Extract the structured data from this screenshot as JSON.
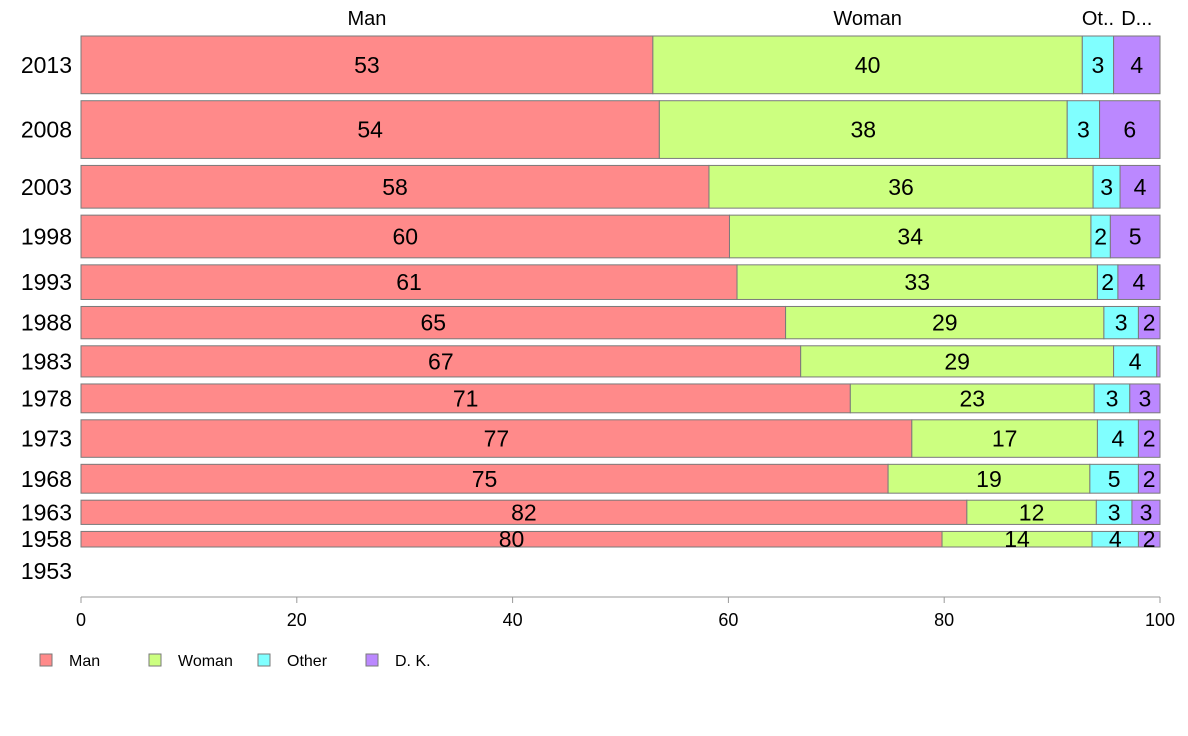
{
  "chart_data": {
    "type": "bar",
    "orientation": "horizontal",
    "stacked": true,
    "title": "",
    "xlabel": "",
    "ylabel": "",
    "xlim": [
      0,
      100
    ],
    "x_ticks": [
      0,
      20,
      40,
      60,
      80,
      100
    ],
    "grid": false,
    "legend_position": "bottom-left",
    "column_headers": [
      "Man",
      "Woman",
      "Ot..",
      "D..."
    ],
    "categories": [
      "2013",
      "2008",
      "2003",
      "1998",
      "1993",
      "1988",
      "1983",
      "1978",
      "1973",
      "1968",
      "1963",
      "1958",
      "1953"
    ],
    "bar_weights": [
      1.0,
      1.0,
      0.74,
      0.74,
      0.6,
      0.56,
      0.54,
      0.5,
      0.65,
      0.5,
      0.42,
      0.27,
      0
    ],
    "series": [
      {
        "name": "Man",
        "color": "#FF8A8A",
        "values": [
          53,
          53.6,
          58.2,
          60.1,
          60.8,
          65.3,
          66.7,
          71.3,
          77.0,
          74.8,
          82.1,
          79.8,
          null
        ],
        "labels": [
          "53",
          "54",
          "58",
          "60",
          "61",
          "65",
          "67",
          "71",
          "77",
          "75",
          "82",
          "80",
          ""
        ]
      },
      {
        "name": "Woman",
        "color": "#CCFF80",
        "values": [
          39.8,
          37.8,
          35.6,
          33.5,
          33.4,
          29.5,
          29.0,
          22.6,
          17.2,
          18.7,
          12.0,
          13.9,
          null
        ],
        "labels": [
          "40",
          "38",
          "36",
          "34",
          "33",
          "29",
          "29",
          "23",
          "17",
          "19",
          "12",
          "14",
          ""
        ]
      },
      {
        "name": "Other",
        "color": "#80FFFF",
        "values": [
          2.9,
          3.0,
          2.5,
          1.8,
          1.9,
          3.2,
          4.0,
          3.3,
          3.8,
          4.5,
          3.3,
          4.3,
          null
        ],
        "labels": [
          "3",
          "3",
          "3",
          "2",
          "2",
          "3",
          "4",
          "3",
          "4",
          "5",
          "3",
          "4",
          ""
        ]
      },
      {
        "name": "D. K.",
        "color": "#BB88FF",
        "values": [
          4.3,
          5.6,
          3.7,
          4.6,
          3.9,
          2.0,
          0.3,
          2.8,
          2.0,
          2.0,
          2.6,
          2.0,
          null
        ],
        "labels": [
          "4",
          "6",
          "4",
          "5",
          "4",
          "2",
          "",
          "3",
          "2",
          "2",
          "3",
          "2",
          ""
        ]
      }
    ]
  }
}
